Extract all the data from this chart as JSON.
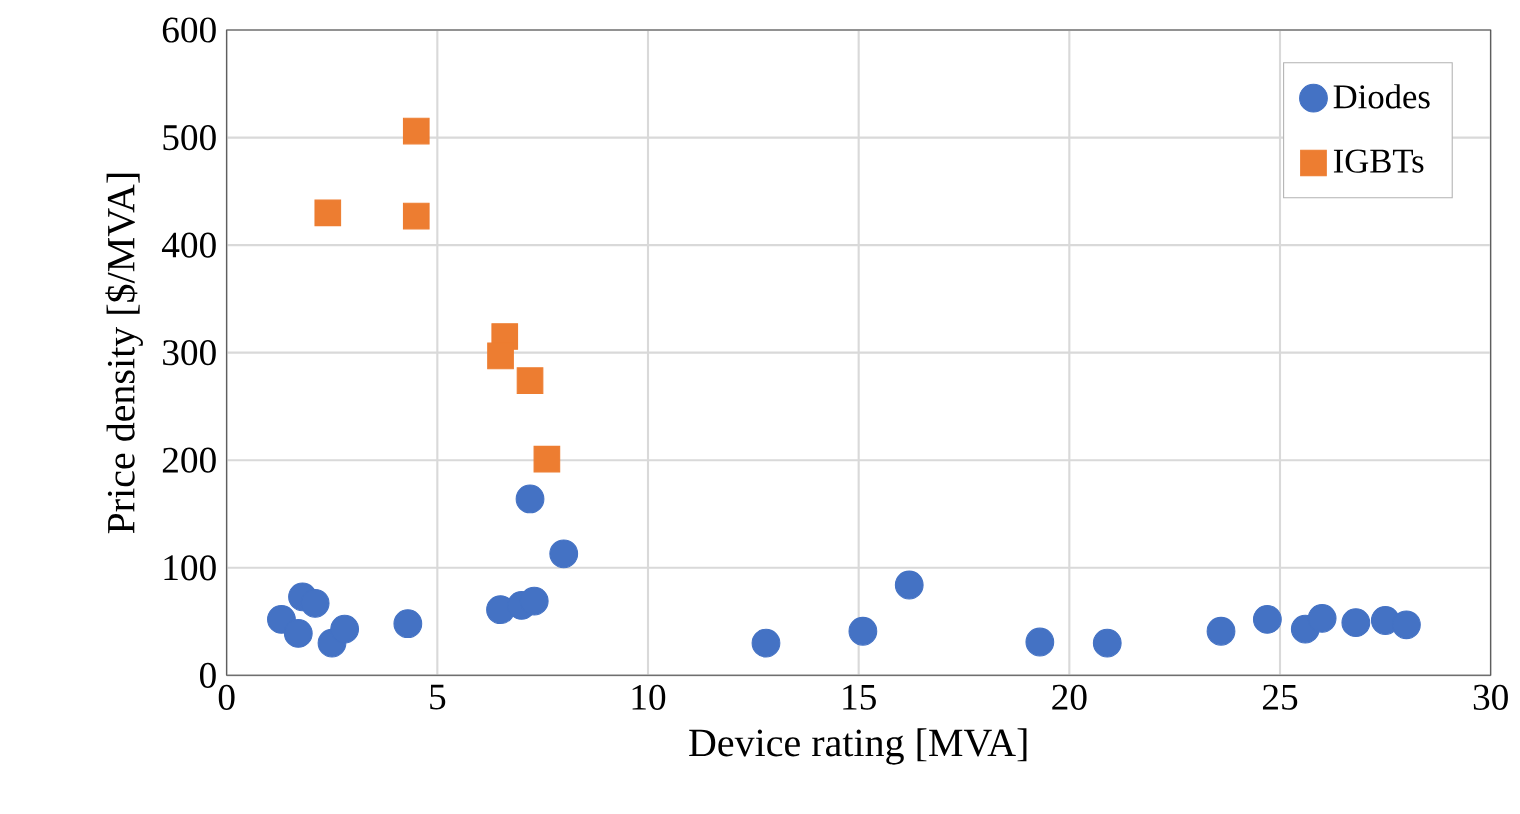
{
  "chart_data": {
    "type": "scatter",
    "xlabel": "Device rating [MVA]",
    "ylabel": "Price density [$/MVA]",
    "xlim": [
      0,
      30
    ],
    "ylim": [
      0,
      600
    ],
    "xticks": [
      0,
      5,
      10,
      15,
      20,
      25,
      30
    ],
    "yticks": [
      0,
      100,
      200,
      300,
      400,
      500,
      600
    ],
    "grid": true,
    "legend": "top right",
    "series": [
      {
        "name": "Diodes",
        "color": "#4472c4",
        "marker": "circle",
        "x": [
          1.3,
          1.8,
          2.1,
          1.7,
          2.5,
          2.8,
          4.3,
          6.5,
          7.0,
          7.3,
          7.2,
          8.0,
          12.8,
          15.1,
          16.2,
          19.3,
          20.9,
          23.6,
          24.7,
          25.6,
          26.0,
          26.8,
          27.5,
          28.0
        ],
        "values": [
          52,
          73,
          67,
          39,
          30,
          43,
          48,
          61,
          65,
          69,
          164,
          113,
          30,
          41,
          84,
          31,
          30,
          41,
          52,
          43,
          53,
          49,
          51,
          47
        ]
      },
      {
        "name": "IGBTs",
        "color": "#ed7d31",
        "marker": "square",
        "x": [
          2.4,
          4.5,
          4.5,
          6.6,
          6.5,
          7.2,
          7.6
        ],
        "values": [
          430,
          506,
          427,
          315,
          297,
          274,
          201
        ]
      }
    ]
  }
}
